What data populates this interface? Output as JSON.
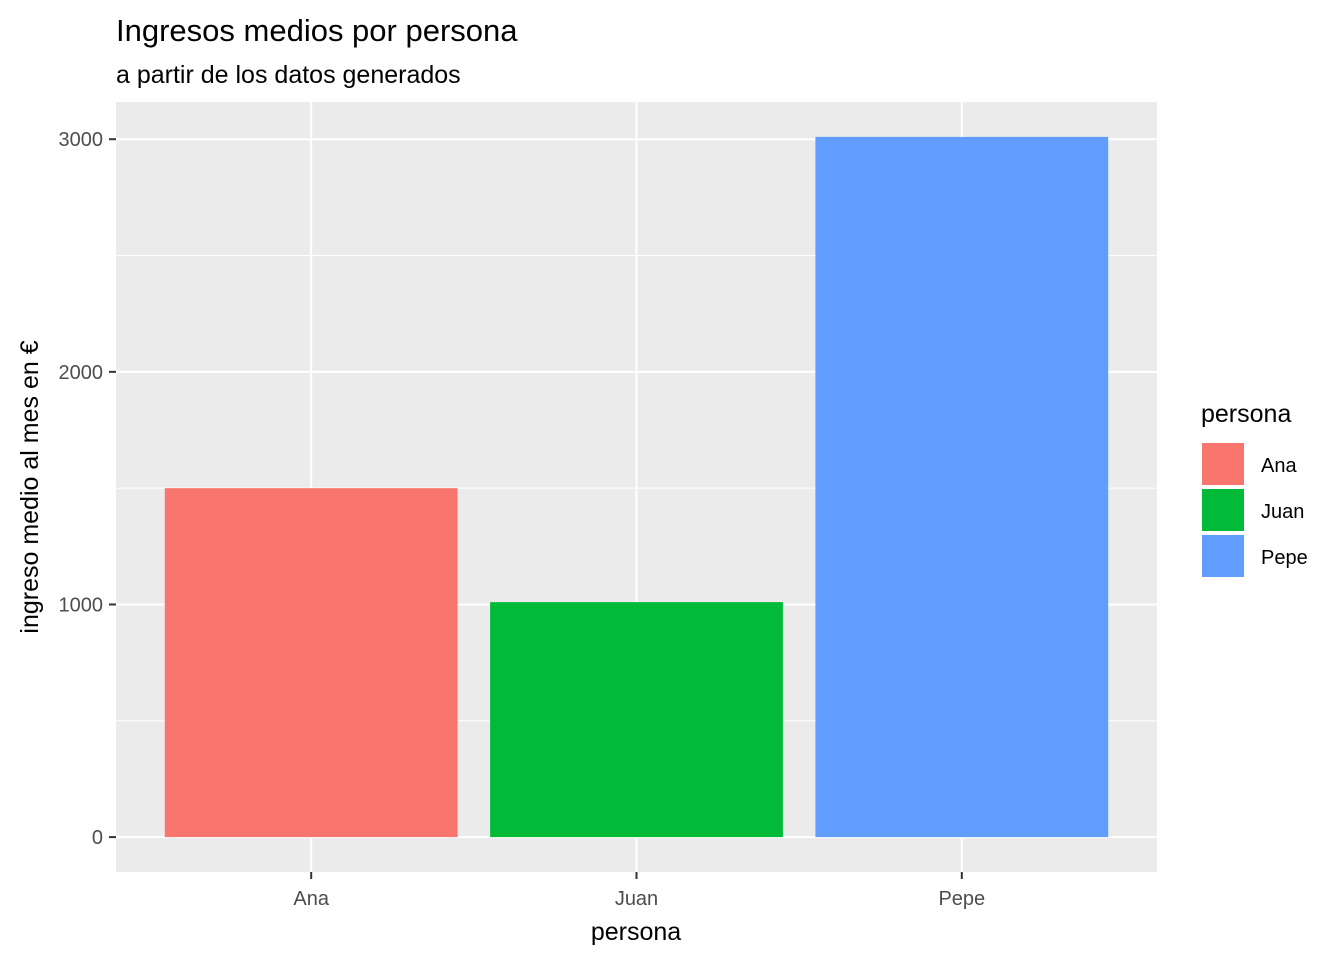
{
  "chart_data": {
    "type": "bar",
    "title": "Ingresos medios por persona",
    "subtitle": "a partir de los datos generados",
    "xlabel": "persona",
    "ylabel": "ingreso medio al mes en €",
    "categories": [
      "Ana",
      "Juan",
      "Pepe"
    ],
    "values": [
      1500,
      1010,
      3010
    ],
    "colors": [
      "#F8766D",
      "#00BA38",
      "#619CFF"
    ],
    "yticks": [
      0,
      1000,
      2000,
      3000
    ],
    "ylim": [
      -150,
      3160
    ],
    "grid": true,
    "panel_background": "#EBEBEB",
    "grid_color": "#FFFFFF",
    "legend": {
      "title": "persona",
      "placement": "right",
      "entries": [
        "Ana",
        "Juan",
        "Pepe"
      ]
    }
  }
}
